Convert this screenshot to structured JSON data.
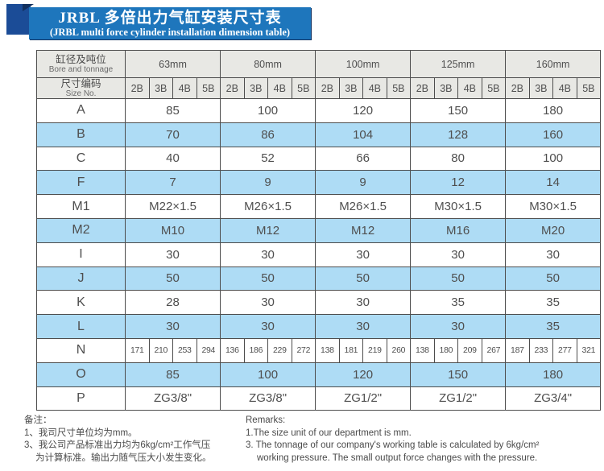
{
  "banner": {
    "title_zh": "JRBL 多倍出力气缸安装尺寸表",
    "title_en": "(JRBL multi force cylinder installation dimension table)",
    "banner_color": "#1e76bc",
    "square_color": "#1b4c97"
  },
  "table": {
    "corner_top": {
      "zh": "缸径及吨位",
      "en": "Bore and tonnage"
    },
    "corner_bottom": {
      "zh": "尺寸编码",
      "en": "Size No."
    },
    "bores": [
      "63mm",
      "80mm",
      "100mm",
      "125mm",
      "160mm"
    ],
    "sub_cols": [
      "2B",
      "3B",
      "4B",
      "5B"
    ],
    "rows": [
      {
        "label": "A",
        "merged": true,
        "shade": false,
        "values": [
          "85",
          "100",
          "120",
          "150",
          "180"
        ]
      },
      {
        "label": "B",
        "merged": true,
        "shade": true,
        "values": [
          "70",
          "86",
          "104",
          "128",
          "160"
        ]
      },
      {
        "label": "C",
        "merged": true,
        "shade": false,
        "values": [
          "40",
          "52",
          "66",
          "80",
          "100"
        ]
      },
      {
        "label": "F",
        "merged": true,
        "shade": true,
        "values": [
          "7",
          "9",
          "9",
          "12",
          "14"
        ]
      },
      {
        "label": "M1",
        "merged": true,
        "shade": false,
        "values": [
          "M22×1.5",
          "M26×1.5",
          "M26×1.5",
          "M30×1.5",
          "M30×1.5"
        ]
      },
      {
        "label": "M2",
        "merged": true,
        "shade": true,
        "values": [
          "M10",
          "M12",
          "M12",
          "M16",
          "M20"
        ]
      },
      {
        "label": "I",
        "merged": true,
        "shade": false,
        "values": [
          "30",
          "30",
          "30",
          "30",
          "30"
        ]
      },
      {
        "label": "J",
        "merged": true,
        "shade": true,
        "values": [
          "50",
          "50",
          "50",
          "50",
          "50"
        ]
      },
      {
        "label": "K",
        "merged": true,
        "shade": false,
        "values": [
          "28",
          "30",
          "30",
          "35",
          "35"
        ]
      },
      {
        "label": "L",
        "merged": true,
        "shade": true,
        "values": [
          "30",
          "30",
          "30",
          "30",
          "35"
        ]
      },
      {
        "label": "N",
        "merged": false,
        "shade": false,
        "values": [
          [
            "171",
            "210",
            "253",
            "294"
          ],
          [
            "136",
            "186",
            "229",
            "272"
          ],
          [
            "138",
            "181",
            "219",
            "260"
          ],
          [
            "138",
            "180",
            "209",
            "267"
          ],
          [
            "187",
            "233",
            "277",
            "321"
          ]
        ]
      },
      {
        "label": "O",
        "merged": true,
        "shade": true,
        "values": [
          "85",
          "100",
          "120",
          "150",
          "180"
        ]
      },
      {
        "label": "P",
        "merged": true,
        "shade": false,
        "values": [
          "ZG3/8\"",
          "ZG3/8\"",
          "ZG1/2\"",
          "ZG1/2\"",
          "ZG3/4\""
        ]
      }
    ],
    "colors": {
      "header_bg": "#e8e8e4",
      "shade_bg": "#aedcf5",
      "border": "#4d4d4d",
      "text": "#4f4f4f"
    }
  },
  "notes_left": {
    "heading": "备注：",
    "lines": [
      "1、我司尺寸单位均为mm。",
      "3、我公司产品标准出力均为6kg/cm²工作气压",
      "为计算标准。输出力随气压大小发生变化。"
    ]
  },
  "notes_right": {
    "heading": "Remarks:",
    "lines": [
      "1.The size unit of our department is mm.",
      "3. The tonnage of our company's working table is calculated by 6kg/cm²",
      "working pressure. The small output force changes with the pressure."
    ]
  }
}
